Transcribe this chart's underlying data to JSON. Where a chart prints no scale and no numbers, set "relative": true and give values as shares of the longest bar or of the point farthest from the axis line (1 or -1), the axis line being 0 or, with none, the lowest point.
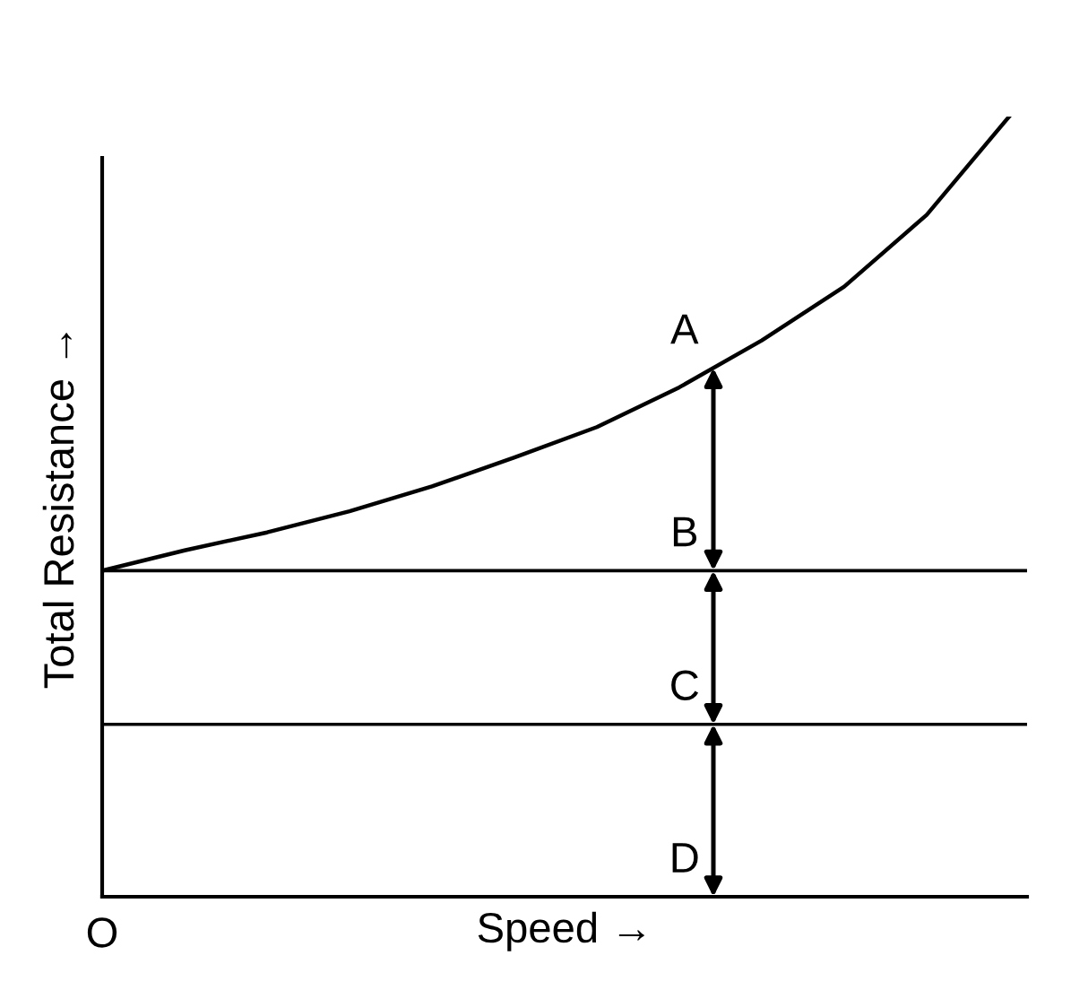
{
  "chart_data": {
    "type": "line",
    "relative": true,
    "xlabel": "Speed →",
    "ylabel": "Total Resistance →",
    "categories": [
      null,
      null,
      null,
      null,
      null,
      null,
      null,
      null,
      null,
      null,
      null,
      null
    ],
    "series": [
      {
        "color": "#000000",
        "values": [
          0.418,
          0.444,
          0.467,
          0.494,
          0.526,
          0.563,
          0.602,
          0.653,
          0.713,
          0.782,
          0.874,
          1
        ]
      }
    ],
    "ref_lines": [
      {
        "axis": "y",
        "value": 0.418,
        "color": "#000000"
      },
      {
        "axis": "y",
        "value": 0.221,
        "color": "#000000"
      }
    ],
    "annotations": [
      "A",
      "B",
      "C",
      "D",
      "O"
    ],
    "legend": false,
    "marker": "none",
    "line_style": "solid"
  }
}
